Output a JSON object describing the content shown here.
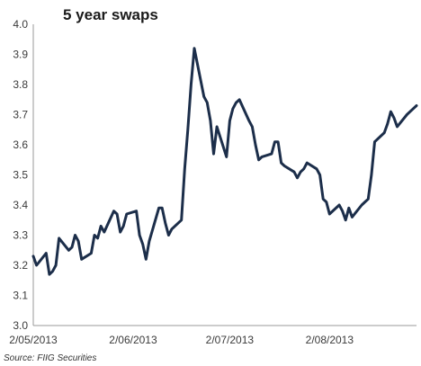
{
  "chart_data": {
    "type": "line",
    "title": "5 year swaps",
    "xlabel": "",
    "ylabel": "",
    "ylim": [
      3.0,
      4.0
    ],
    "yticks": [
      "3.0",
      "3.1",
      "3.2",
      "3.3",
      "3.4",
      "3.5",
      "3.6",
      "3.7",
      "3.8",
      "3.9",
      "4.0"
    ],
    "xticks": [
      {
        "label": "2/05/2013",
        "x": "2013-05-02"
      },
      {
        "label": "2/06/2013",
        "x": "2013-06-02"
      },
      {
        "label": "2/07/2013",
        "x": "2013-07-02"
      },
      {
        "label": "2/08/2013",
        "x": "2013-08-02"
      }
    ],
    "xlim": [
      "2013-05-02",
      "2013-08-29"
    ],
    "grid": false,
    "legend": "none",
    "line_color": "#1c2e4a",
    "series": [
      {
        "x": [
          "2013-05-02",
          "2013-05-03",
          "2013-05-06",
          "2013-05-07",
          "2013-05-08",
          "2013-05-09",
          "2013-05-10",
          "2013-05-13",
          "2013-05-14",
          "2013-05-15",
          "2013-05-16",
          "2013-05-17",
          "2013-05-20",
          "2013-05-21",
          "2013-05-22",
          "2013-05-23",
          "2013-05-24",
          "2013-05-27",
          "2013-05-28",
          "2013-05-29",
          "2013-05-30",
          "2013-05-31",
          "2013-06-03",
          "2013-06-04",
          "2013-06-05",
          "2013-06-06",
          "2013-06-07",
          "2013-06-10",
          "2013-06-11",
          "2013-06-12",
          "2013-06-13",
          "2013-06-14",
          "2013-06-17",
          "2013-06-18",
          "2013-06-19",
          "2013-06-20",
          "2013-06-21",
          "2013-06-24",
          "2013-06-25",
          "2013-06-26",
          "2013-06-27",
          "2013-06-28",
          "2013-07-01",
          "2013-07-02",
          "2013-07-03",
          "2013-07-04",
          "2013-07-05",
          "2013-07-08",
          "2013-07-09",
          "2013-07-10",
          "2013-07-11",
          "2013-07-12",
          "2013-07-15",
          "2013-07-16",
          "2013-07-17",
          "2013-07-18",
          "2013-07-19",
          "2013-07-22",
          "2013-07-23",
          "2013-07-24",
          "2013-07-25",
          "2013-07-26",
          "2013-07-29",
          "2013-07-30",
          "2013-07-31",
          "2013-08-01",
          "2013-08-02",
          "2013-08-05",
          "2013-08-06",
          "2013-08-07",
          "2013-08-08",
          "2013-08-09",
          "2013-08-12",
          "2013-08-13",
          "2013-08-14",
          "2013-08-15",
          "2013-08-16",
          "2013-08-19",
          "2013-08-20",
          "2013-08-21",
          "2013-08-22",
          "2013-08-23",
          "2013-08-26",
          "2013-08-27",
          "2013-08-28",
          "2013-08-29"
        ],
        "values": [
          3.23,
          3.2,
          3.24,
          3.17,
          3.18,
          3.2,
          3.29,
          3.25,
          3.26,
          3.3,
          3.28,
          3.22,
          3.24,
          3.3,
          3.29,
          3.33,
          3.31,
          3.38,
          3.37,
          3.31,
          3.33,
          3.37,
          3.38,
          3.3,
          3.27,
          3.22,
          3.28,
          3.39,
          3.39,
          3.34,
          3.3,
          3.32,
          3.35,
          3.52,
          3.65,
          3.8,
          3.92,
          3.76,
          3.74,
          3.68,
          3.57,
          3.66,
          3.56,
          3.68,
          3.72,
          3.74,
          3.75,
          3.68,
          3.66,
          3.6,
          3.55,
          3.56,
          3.57,
          3.61,
          3.61,
          3.54,
          3.53,
          3.51,
          3.49,
          3.51,
          3.52,
          3.54,
          3.52,
          3.5,
          3.42,
          3.41,
          3.37,
          3.4,
          3.38,
          3.35,
          3.39,
          3.36,
          3.4,
          3.41,
          3.42,
          3.5,
          3.61,
          3.64,
          3.67,
          3.71,
          3.69,
          3.66,
          3.7,
          3.71,
          3.72,
          3.73
        ]
      }
    ],
    "source": "Source: FIIG Securities"
  }
}
